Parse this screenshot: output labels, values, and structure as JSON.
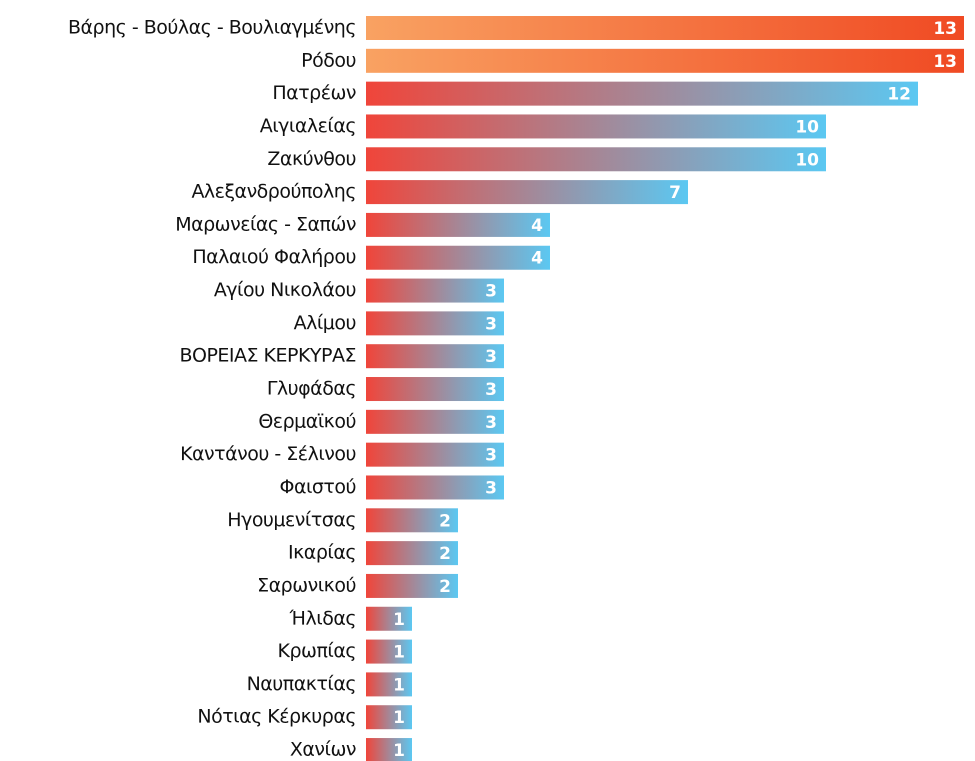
{
  "chart_data": {
    "type": "barh",
    "categories": [
      "Βάρης - Βούλας - Βουλιαγμένης",
      "Ρόδου",
      "Πατρέων",
      "Αιγιαλείας",
      "Ζακύνθου",
      "Αλεξανδρούπολης",
      "Μαρωνείας - Σαπών",
      "Παλαιού Φαλήρου",
      "Αγίου Νικολάου",
      "Αλίμου",
      "ΒΟΡΕΙΑΣ ΚΕΡΚΥΡΑΣ",
      "Γλυφάδας",
      "Θερμαϊκού",
      "Καντάνου - Σέλινου",
      "Φαιστού",
      "Ηγουμενίτσας",
      "Ικαρίας",
      "Σαρωνικού",
      "Ήλιδας",
      "Κρωπίας",
      "Ναυπακτίας",
      "Νότιας Κέρκυρας",
      "Χανίων"
    ],
    "values": [
      13,
      13,
      12,
      10,
      10,
      7,
      4,
      4,
      3,
      3,
      3,
      3,
      3,
      3,
      3,
      2,
      2,
      2,
      1,
      1,
      1,
      1,
      1
    ],
    "colors": [
      [
        "#f9a262",
        "#f04a23"
      ],
      [
        "#f9a262",
        "#f04a23"
      ],
      [
        "#f0453a",
        "#5bc8f2"
      ],
      [
        "#f0453a",
        "#5bc8f2"
      ],
      [
        "#f0453a",
        "#5bc8f2"
      ],
      [
        "#f0453a",
        "#5bc8f2"
      ],
      [
        "#f0453a",
        "#5bc8f2"
      ],
      [
        "#f0453a",
        "#5bc8f2"
      ],
      [
        "#f0453a",
        "#5bc8f2"
      ],
      [
        "#f0453a",
        "#5bc8f2"
      ],
      [
        "#f0453a",
        "#5bc8f2"
      ],
      [
        "#f0453a",
        "#5bc8f2"
      ],
      [
        "#f0453a",
        "#5bc8f2"
      ],
      [
        "#f0453a",
        "#5bc8f2"
      ],
      [
        "#f0453a",
        "#5bc8f2"
      ],
      [
        "#f0453a",
        "#5bc8f2"
      ],
      [
        "#f0453a",
        "#5bc8f2"
      ],
      [
        "#f0453a",
        "#5bc8f2"
      ],
      [
        "#f0453a",
        "#5bc8f2"
      ],
      [
        "#f0453a",
        "#5bc8f2"
      ],
      [
        "#f0453a",
        "#5bc8f2"
      ],
      [
        "#f0453a",
        "#5bc8f2"
      ],
      [
        "#f0453a",
        "#5bc8f2"
      ]
    ],
    "xlim": [
      0,
      13
    ]
  }
}
